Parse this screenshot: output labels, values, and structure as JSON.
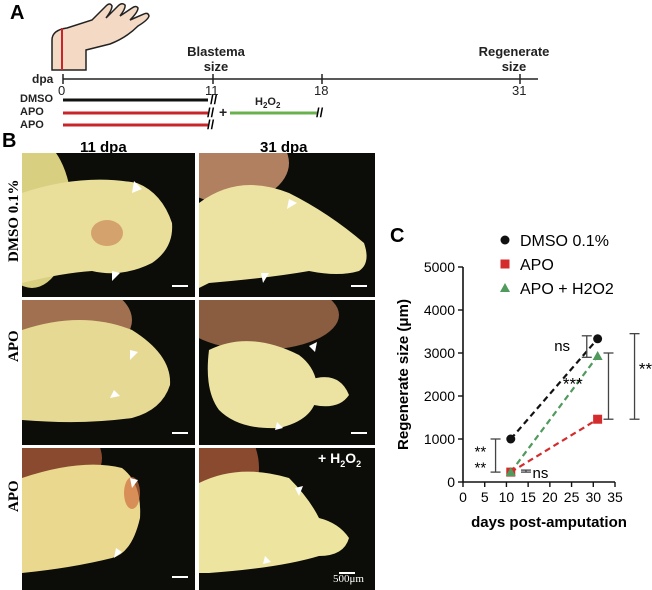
{
  "panel_a": {
    "letter": "A",
    "dpa_label": "dpa",
    "blastema_line1": "Blastema",
    "blastema_line2": "size",
    "regenerate_line1": "Regenerate",
    "regenerate_line2": "size",
    "ticks": [
      "0",
      "11",
      "18",
      "31"
    ],
    "rows": [
      "DMSO",
      "APO",
      "APO"
    ],
    "plus": "+",
    "h2o2_label": "H2O2",
    "colors": {
      "dmso": "#111111",
      "apo": "#c8252b",
      "h2o2": "#6ab04c",
      "amputation": "#c8252b"
    }
  },
  "panel_b": {
    "letter": "B",
    "col_headers": [
      "11 dpa",
      "31 dpa"
    ],
    "row_labels": [
      "DMSO 0.1%",
      "APO",
      "APO"
    ],
    "h2o2_overlay": "+ H2O2",
    "scale_label": "500μm"
  },
  "panel_c": {
    "letter": "C",
    "chart_data": {
      "type": "scatter",
      "x": [
        11,
        31
      ],
      "xlabel": "days post-amputation",
      "ylabel": "Regenerate size (μm)",
      "xlim": [
        0,
        35
      ],
      "ylim": [
        0,
        5000
      ],
      "xticks": [
        0,
        5,
        10,
        15,
        20,
        25,
        30,
        35
      ],
      "yticks": [
        0,
        1000,
        2000,
        3000,
        4000,
        5000
      ],
      "series": [
        {
          "name": "DMSO 0.1%",
          "values": [
            1000,
            3330
          ],
          "color": "#111111",
          "marker": "circle"
        },
        {
          "name": "APO",
          "values": [
            230,
            1460
          ],
          "color": "#d42c2c",
          "marker": "square"
        },
        {
          "name": "APO + H2O2",
          "values": [
            230,
            2930
          ],
          "color": "#4f9a5c",
          "marker": "triangle"
        }
      ],
      "annotations": [
        "**",
        "**",
        "ns",
        "ns",
        "***",
        "***"
      ]
    }
  }
}
